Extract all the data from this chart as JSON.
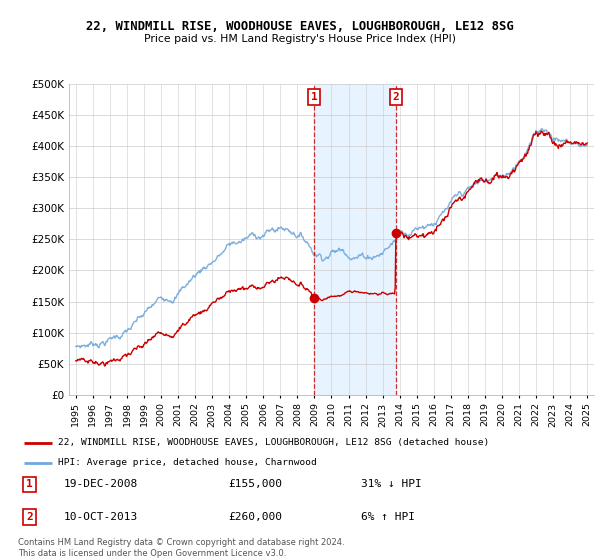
{
  "title_line1": "22, WINDMILL RISE, WOODHOUSE EAVES, LOUGHBOROUGH, LE12 8SG",
  "title_line2": "Price paid vs. HM Land Registry's House Price Index (HPI)",
  "legend_line1": "22, WINDMILL RISE, WOODHOUSE EAVES, LOUGHBOROUGH, LE12 8SG (detached house)",
  "legend_line2": "HPI: Average price, detached house, Charnwood",
  "annotation1_label": "1",
  "annotation1_date": "19-DEC-2008",
  "annotation1_price": "£155,000",
  "annotation1_hpi": "31% ↓ HPI",
  "annotation2_label": "2",
  "annotation2_date": "10-OCT-2013",
  "annotation2_price": "£260,000",
  "annotation2_hpi": "6% ↑ HPI",
  "footnote1": "Contains HM Land Registry data © Crown copyright and database right 2024.",
  "footnote2": "This data is licensed under the Open Government Licence v3.0.",
  "sale1_year": 2008.97,
  "sale1_price": 155000,
  "sale2_year": 2013.78,
  "sale2_price": 260000,
  "hpi_color": "#6fa8dc",
  "price_color": "#cc0000",
  "background_plot": "#ffffff",
  "background_fig": "#ffffff",
  "annotation_box_color": "#cc0000",
  "shading_color": "#ddeeff",
  "ylim": [
    0,
    500000
  ],
  "xlim_start": 1994.6,
  "xlim_end": 2025.4
}
